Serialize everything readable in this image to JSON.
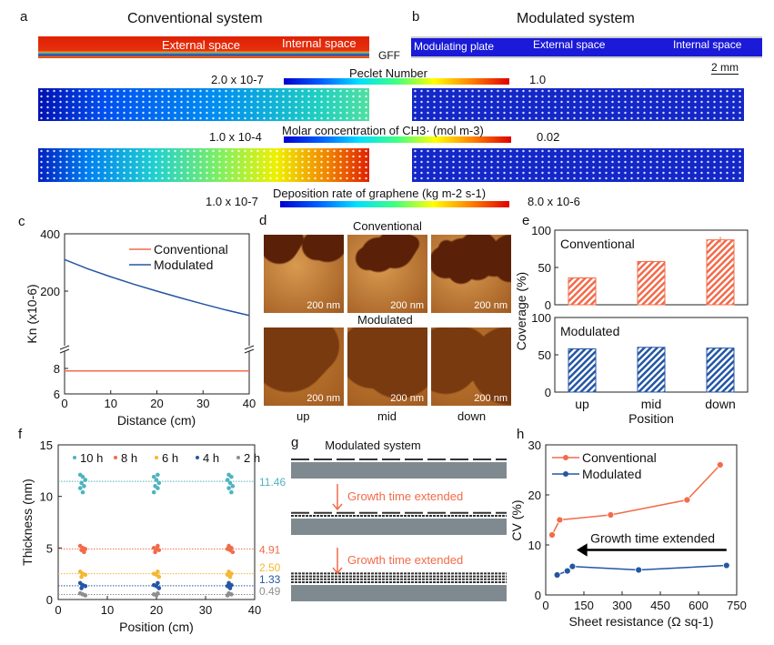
{
  "panel_labels": {
    "a": "a",
    "b": "b",
    "c": "c",
    "d": "d",
    "e": "e",
    "f": "f",
    "g": "g",
    "h": "h"
  },
  "panel_a": {
    "title": "Conventional system",
    "external": "External space",
    "internal": "Internal space",
    "gff": "GFF"
  },
  "panel_b": {
    "title": "Modulated system",
    "plate": "Modulating plate",
    "external": "External space",
    "internal": "Internal space",
    "scale": "2 mm"
  },
  "colorbars": [
    {
      "label": "Peclet Number",
      "min": "2.0 x 10-7",
      "max": "1.0"
    },
    {
      "label": "Molar concentration of CH3· (mol m-3)",
      "min": "1.0 x 10-4",
      "max": "0.02"
    },
    {
      "label": "Deposition rate of graphene (kg m-2 s-1)",
      "min": "1.0 x 10-7",
      "max": "8.0 x 10-6"
    }
  ],
  "colors": {
    "conventional": "#f26b4a",
    "modulated": "#2456a4",
    "substrate": "#7f8a90"
  },
  "panel_d": {
    "top_label": "Conventional",
    "bottom_label": "Modulated",
    "scale": "200 nm",
    "positions": [
      "up",
      "mid",
      "down"
    ]
  },
  "panel_g": {
    "title": "Modulated system",
    "step": "Growth time extended"
  },
  "chart_data": [
    {
      "panel": "c",
      "type": "line",
      "xlabel": "Distance (cm)",
      "ylabel": "Kn (x10-6)",
      "xlim": [
        0,
        40
      ],
      "xticks": [
        "0",
        "10",
        "20",
        "30",
        "40"
      ],
      "ylim_upper": [
        100,
        400
      ],
      "ylim_lower": [
        6,
        9
      ],
      "yticks": [
        "400",
        "200",
        "8",
        "6"
      ],
      "axis_break": true,
      "legend": "top-right",
      "series": [
        {
          "name": "Conventional",
          "x": [
            0,
            10,
            20,
            30,
            40
          ],
          "y": [
            7.8,
            7.8,
            7.8,
            7.8,
            7.8
          ],
          "color": "#f26b4a"
        },
        {
          "name": "Modulated",
          "x": [
            0,
            5,
            10,
            15,
            20,
            25,
            30,
            35,
            40
          ],
          "y": [
            310,
            278,
            250,
            224,
            200,
            177,
            155,
            134,
            115
          ],
          "color": "#2456a4"
        }
      ]
    },
    {
      "panel": "e",
      "type": "bar",
      "xlabel": "Position",
      "ylabel": "Coverage (%)",
      "categories": [
        "up",
        "mid",
        "down"
      ],
      "ylim": [
        0,
        100
      ],
      "yticks": [
        "0",
        "50",
        "100"
      ],
      "series": [
        {
          "name": "Conventional",
          "values": [
            36,
            58,
            87
          ],
          "errors": [
            1,
            1,
            4
          ],
          "color": "#f26b4a"
        },
        {
          "name": "Modulated",
          "values": [
            58,
            60,
            59
          ],
          "errors": [
            1,
            1,
            1
          ],
          "color": "#2456a4"
        }
      ]
    },
    {
      "panel": "f",
      "type": "scatter",
      "xlabel": "Position (cm)",
      "ylabel": "Thickness (nm)",
      "xlim": [
        0,
        40
      ],
      "ylim": [
        0,
        15
      ],
      "xticks": [
        "0",
        "10",
        "20",
        "30",
        "40"
      ],
      "yticks": [
        "0",
        "5",
        "10",
        "15"
      ],
      "legend": "top",
      "positions": [
        5,
        20,
        35
      ],
      "series": [
        {
          "name": "10 h",
          "mean": "11.46",
          "color": "#4fb3bf",
          "samples": [
            12.1,
            11.9,
            11.6,
            11.3,
            11.0,
            10.8,
            10.4
          ]
        },
        {
          "name": "8 h",
          "mean": "4.91",
          "color": "#f26b4a",
          "samples": [
            5.2,
            5.0,
            4.9,
            4.8,
            4.6
          ]
        },
        {
          "name": "6 h",
          "mean": "2.50",
          "color": "#f5b731",
          "samples": [
            2.7,
            2.5,
            2.4,
            2.2
          ]
        },
        {
          "name": "4 h",
          "mean": "1.33",
          "color": "#2456a4",
          "samples": [
            1.6,
            1.4,
            1.3,
            1.1
          ]
        },
        {
          "name": "2 h",
          "mean": "0.49",
          "color": "#8e8e8e",
          "samples": [
            0.6,
            0.5,
            0.4
          ]
        }
      ]
    },
    {
      "panel": "h",
      "type": "line",
      "xlabel": "Sheet resistance (Ω  sq-1)",
      "ylabel": "CV (%)",
      "xlim": [
        0,
        750
      ],
      "ylim": [
        0,
        30
      ],
      "xticks": [
        "0",
        "150",
        "300",
        "450",
        "600",
        "750"
      ],
      "yticks": [
        "0",
        "10",
        "20",
        "30"
      ],
      "legend": "top-left",
      "annotation": "Growth time extended",
      "series": [
        {
          "name": "Conventional",
          "x": [
            25,
            55,
            255,
            555,
            685
          ],
          "y": [
            12,
            15,
            16,
            19,
            26
          ],
          "color": "#f26b4a"
        },
        {
          "name": "Modulated",
          "x": [
            45,
            85,
            105,
            365,
            710
          ],
          "y": [
            4,
            4.8,
            5.7,
            5,
            5.9
          ],
          "color": "#2456a4"
        }
      ]
    }
  ]
}
